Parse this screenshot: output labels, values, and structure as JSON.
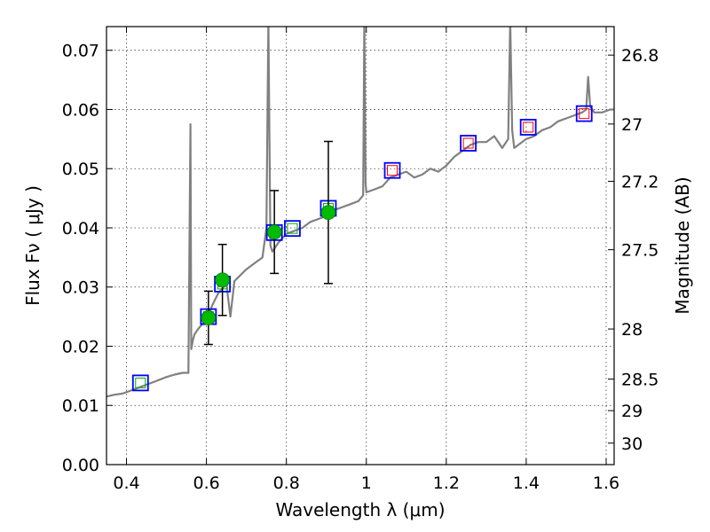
{
  "chart_data": {
    "type": "scatter",
    "xlabel": "Wavelength  λ (μm)",
    "ylabel": "Flux  Fν ( μJy )",
    "y2label": "Magnitude (AB)",
    "xlim": [
      0.35,
      1.62
    ],
    "ylim": [
      0.0,
      0.074
    ],
    "grid": true,
    "x_ticks": [
      0.4,
      0.6,
      0.8,
      1.0,
      1.2,
      1.4,
      1.6
    ],
    "x_tick_labels": [
      "0.4",
      "0.6",
      "0.8",
      "1",
      "1.2",
      "1.4",
      "1.6"
    ],
    "y_ticks": [
      0.0,
      0.01,
      0.02,
      0.03,
      0.04,
      0.05,
      0.06,
      0.07
    ],
    "y_tick_labels": [
      "0.00",
      "0.01",
      "0.02",
      "0.03",
      "0.04",
      "0.05",
      "0.06",
      "0.07"
    ],
    "y2_ticks": [
      26.8,
      27.0,
      27.2,
      27.5,
      28.0,
      28.5,
      29.0,
      30.0
    ],
    "y2_tick_labels": [
      "26.8",
      "27",
      "27.2",
      "27.5",
      "28",
      "28.5",
      "29",
      "30"
    ],
    "series": [
      {
        "kind": "line",
        "color": "#808080",
        "x": [
          0.35,
          0.37,
          0.39,
          0.41,
          0.43,
          0.45,
          0.47,
          0.5,
          0.52,
          0.54,
          0.555,
          0.56,
          0.562,
          0.566,
          0.57,
          0.58,
          0.6,
          0.615,
          0.63,
          0.65,
          0.66,
          0.67,
          0.7,
          0.72,
          0.74,
          0.75,
          0.755,
          0.76,
          0.765,
          0.78,
          0.8,
          0.82,
          0.84,
          0.86,
          0.88,
          0.9,
          0.92,
          0.94,
          0.96,
          0.98,
          0.992,
          0.995,
          0.998,
          1.0,
          1.02,
          1.04,
          1.06,
          1.08,
          1.1,
          1.12,
          1.14,
          1.16,
          1.18,
          1.2,
          1.22,
          1.24,
          1.26,
          1.28,
          1.3,
          1.32,
          1.34,
          1.355,
          1.36,
          1.365,
          1.37,
          1.38,
          1.4,
          1.42,
          1.44,
          1.46,
          1.48,
          1.5,
          1.52,
          1.54,
          1.55,
          1.555,
          1.56,
          1.57,
          1.59,
          1.61,
          1.62
        ],
        "y": [
          0.0115,
          0.0118,
          0.012,
          0.0125,
          0.013,
          0.0135,
          0.014,
          0.0148,
          0.0152,
          0.0155,
          0.0155,
          0.0575,
          0.0195,
          0.021,
          0.022,
          0.023,
          0.0245,
          0.027,
          0.029,
          0.0305,
          0.025,
          0.031,
          0.033,
          0.034,
          0.035,
          0.04,
          0.075,
          0.037,
          0.036,
          0.0375,
          0.039,
          0.0395,
          0.04,
          0.041,
          0.0415,
          0.042,
          0.043,
          0.0435,
          0.044,
          0.0445,
          0.0455,
          0.075,
          0.0475,
          0.046,
          0.0465,
          0.047,
          0.0485,
          0.049,
          0.0495,
          0.0485,
          0.049,
          0.05,
          0.0495,
          0.0505,
          0.052,
          0.053,
          0.054,
          0.0545,
          0.0545,
          0.0555,
          0.0535,
          0.055,
          0.075,
          0.0565,
          0.0535,
          0.054,
          0.055,
          0.0555,
          0.0565,
          0.057,
          0.058,
          0.0585,
          0.059,
          0.0595,
          0.06,
          0.0655,
          0.0605,
          0.0595,
          0.0595,
          0.06,
          0.06
        ]
      },
      {
        "kind": "points",
        "marker": "square-open",
        "color": "#0000ff",
        "x": [
          0.435,
          0.605,
          0.64,
          0.77,
          0.815,
          0.905,
          1.065,
          1.255,
          1.405,
          1.545
        ],
        "y": [
          0.0138,
          0.025,
          0.0305,
          0.0392,
          0.0399,
          0.0433,
          0.0497,
          0.0543,
          0.057,
          0.0593
        ]
      },
      {
        "kind": "points",
        "marker": "square-open-small",
        "color": "#00aa00",
        "x": [
          0.435,
          0.605,
          0.64,
          0.77,
          0.815,
          0.905
        ],
        "y": [
          0.0138,
          0.025,
          0.0305,
          0.0392,
          0.0399,
          0.0433
        ]
      },
      {
        "kind": "points",
        "marker": "square-open-small",
        "color": "#ff0000",
        "x": [
          1.065,
          1.255,
          1.405,
          1.545
        ],
        "y": [
          0.0497,
          0.0543,
          0.057,
          0.0593
        ]
      },
      {
        "kind": "errorbar",
        "marker": "circle-filled",
        "color": "#00bb00",
        "x": [
          0.605,
          0.64,
          0.77,
          0.905
        ],
        "y": [
          0.0248,
          0.0312,
          0.0393,
          0.0426
        ],
        "yerr_low": [
          0.0045,
          0.006,
          0.007,
          0.012
        ],
        "yerr_high": [
          0.0045,
          0.006,
          0.007,
          0.012
        ]
      }
    ]
  }
}
